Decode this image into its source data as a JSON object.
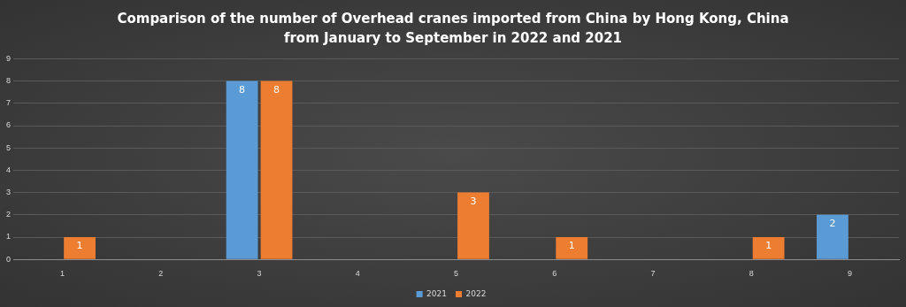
{
  "chart_data": {
    "type": "bar",
    "title": "Comparison of the number of Overhead cranes imported from China by Hong Kong, China from January to September in 2022 and 2021",
    "categories": [
      "1",
      "2",
      "3",
      "4",
      "5",
      "6",
      "7",
      "8",
      "9"
    ],
    "series": [
      {
        "name": "2021",
        "color": "#5b9bd5",
        "values": [
          null,
          null,
          8,
          null,
          null,
          null,
          null,
          null,
          2
        ]
      },
      {
        "name": "2022",
        "color": "#ed7d31",
        "values": [
          1,
          null,
          8,
          null,
          3,
          1,
          null,
          1,
          null
        ]
      }
    ],
    "ylim": [
      0,
      9
    ],
    "yticks": [
      0,
      1,
      2,
      3,
      4,
      5,
      6,
      7,
      8,
      9
    ],
    "grid": "y",
    "legend": "bottom",
    "data_labels": true
  }
}
